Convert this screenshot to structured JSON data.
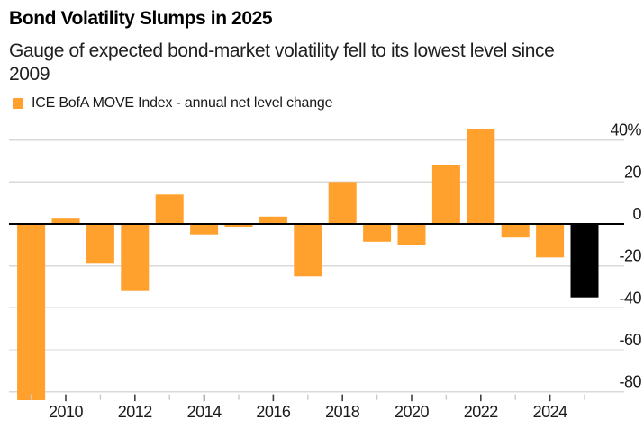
{
  "chart_data": {
    "type": "bar",
    "title": "Bond Volatility Slumps in 2025",
    "subtitle_lines": [
      "Gauge of expected bond-market volatility fell to its lowest level since",
      "2009"
    ],
    "subtitle": "Gauge of expected bond-market volatility fell to its lowest level since 2009",
    "legend": [
      "ICE BofA MOVE Index - annual net level change"
    ],
    "legend_position": "top-left",
    "value_axis_side": "right",
    "grid": "horizontal",
    "categories": [
      2009,
      2010,
      2011,
      2012,
      2013,
      2014,
      2015,
      2016,
      2017,
      2018,
      2019,
      2020,
      2021,
      2022,
      2023,
      2024,
      2025
    ],
    "values": [
      -84,
      2.5,
      -19,
      -32,
      14,
      -5,
      -1.5,
      3.5,
      -25,
      20,
      -8.5,
      -10,
      28,
      45,
      -6.5,
      -16,
      -35
    ],
    "highlight_category": 2025,
    "ylim": [
      -84,
      47
    ],
    "y_ticks": [
      {
        "value": 40,
        "label": "40%"
      },
      {
        "value": 20,
        "label": "20"
      },
      {
        "value": 0,
        "label": "0"
      },
      {
        "value": -20,
        "label": "-20"
      },
      {
        "value": -40,
        "label": "-40"
      },
      {
        "value": -60,
        "label": "-60"
      },
      {
        "value": -80,
        "label": "-80"
      }
    ],
    "x_major_tick_labels": [
      "2010",
      "2012",
      "2014",
      "2016",
      "2018",
      "2020",
      "2022",
      "2024"
    ],
    "x_major_tick_years": [
      2010,
      2012,
      2014,
      2016,
      2018,
      2020,
      2022,
      2024
    ],
    "x_minor_tick_years": [
      2009,
      2011,
      2013,
      2015,
      2017,
      2019,
      2021,
      2023,
      2025
    ],
    "colors": {
      "bar": "#FFA12C",
      "highlight_bar": "#000000",
      "zero_line": "#000000",
      "gridline": "#D9D9D9",
      "major_tick": "#3F3F3F",
      "minor_tick": "#C9C9C9",
      "text": "#1A1A1A"
    }
  }
}
